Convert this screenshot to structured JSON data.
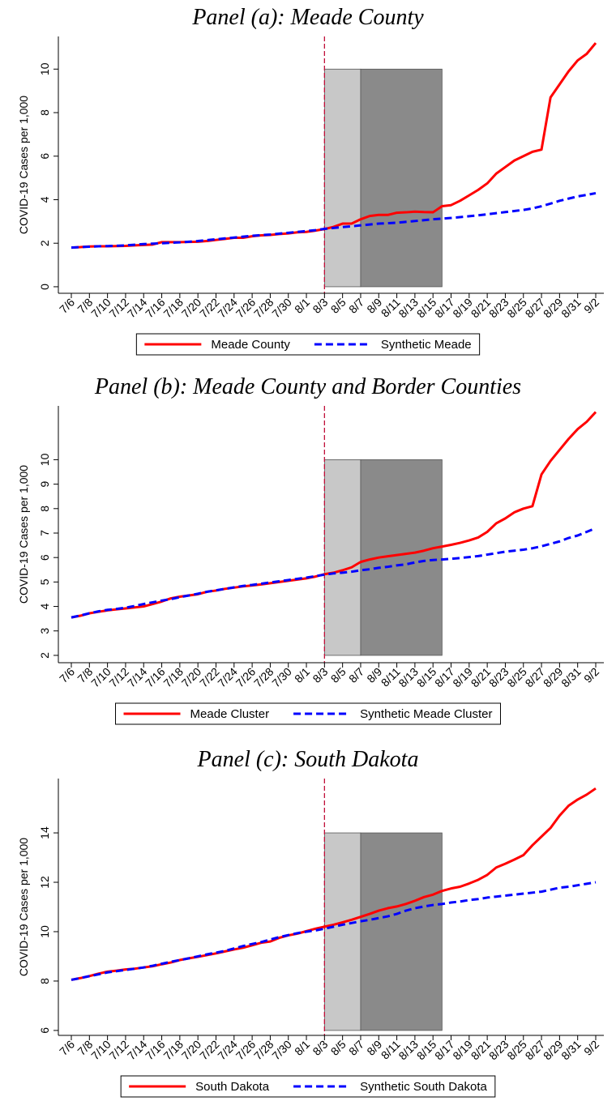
{
  "chart_data": [
    {
      "type": "line",
      "title": "Panel (a): Meade County",
      "y_label": "COVID-19 Cases per 1,000",
      "categories": [
        "7/6",
        null,
        "7/8",
        null,
        "7/10",
        null,
        "7/12",
        null,
        "7/14",
        null,
        "7/16",
        null,
        "7/18",
        null,
        "7/20",
        null,
        "7/22",
        null,
        "7/24",
        null,
        "7/26",
        null,
        "7/28",
        null,
        "7/30",
        null,
        "8/1",
        null,
        "8/3",
        null,
        "8/5",
        null,
        "8/7",
        null,
        "8/9",
        null,
        "8/11",
        null,
        "8/13",
        null,
        "8/15",
        null,
        "8/17",
        null,
        "8/19",
        null,
        "8/21",
        null,
        "8/23",
        null,
        "8/25",
        null,
        "8/27",
        null,
        "8/29",
        null,
        "8/31",
        null,
        "9/2"
      ],
      "series": [
        {
          "name": "Meade County",
          "color": "#ff0000",
          "line_style": "solid",
          "values": [
            1.8,
            1.82,
            1.85,
            1.86,
            1.86,
            1.87,
            1.88,
            1.9,
            1.92,
            1.94,
            2.05,
            2.05,
            2.05,
            2.06,
            2.07,
            2.1,
            2.15,
            2.2,
            2.25,
            2.25,
            2.32,
            2.36,
            2.38,
            2.42,
            2.45,
            2.5,
            2.52,
            2.58,
            2.65,
            2.75,
            2.9,
            2.9,
            3.1,
            3.25,
            3.3,
            3.3,
            3.4,
            3.42,
            3.45,
            3.43,
            3.42,
            3.7,
            3.75,
            3.95,
            4.2,
            4.45,
            4.75,
            5.2,
            5.5,
            5.8,
            6.0,
            6.2,
            6.3,
            8.7,
            9.3,
            9.9,
            10.4,
            10.7,
            11.2
          ]
        },
        {
          "name": "Synthetic Meade",
          "color": "#0000ff",
          "line_style": "dashed",
          "values": [
            1.8,
            1.82,
            1.84,
            1.86,
            1.87,
            1.88,
            1.9,
            1.93,
            1.96,
            1.98,
            2.0,
            2.02,
            2.04,
            2.07,
            2.1,
            2.14,
            2.18,
            2.22,
            2.26,
            2.3,
            2.34,
            2.37,
            2.4,
            2.44,
            2.48,
            2.52,
            2.56,
            2.6,
            2.66,
            2.7,
            2.74,
            2.78,
            2.82,
            2.86,
            2.9,
            2.92,
            2.94,
            2.98,
            3.02,
            3.06,
            3.1,
            3.13,
            3.16,
            3.2,
            3.24,
            3.28,
            3.33,
            3.38,
            3.43,
            3.48,
            3.53,
            3.6,
            3.7,
            3.82,
            3.95,
            4.05,
            4.15,
            4.22,
            4.3
          ]
        }
      ],
      "ylim": [
        -0.3,
        11.5
      ],
      "yticks": [
        0,
        2,
        4,
        6,
        8,
        10
      ],
      "event_index": 28,
      "event_color": "#c0103a",
      "shaded_regions": [
        {
          "from": 28,
          "to": 32,
          "bottom": 0,
          "top": 10,
          "color": "#c8c8c8"
        },
        {
          "from": 32,
          "to": 41,
          "bottom": 0,
          "top": 10,
          "color": "#8a8a8a"
        }
      ]
    },
    {
      "type": "line",
      "title": "Panel (b): Meade County and Border Counties",
      "y_label": "COVID-19 Cases per 1,000",
      "categories": [
        "7/6",
        null,
        "7/8",
        null,
        "7/10",
        null,
        "7/12",
        null,
        "7/14",
        null,
        "7/16",
        null,
        "7/18",
        null,
        "7/20",
        null,
        "7/22",
        null,
        "7/24",
        null,
        "7/26",
        null,
        "7/28",
        null,
        "7/30",
        null,
        "8/1",
        null,
        "8/3",
        null,
        "8/5",
        null,
        "8/7",
        null,
        "8/9",
        null,
        "8/11",
        null,
        "8/13",
        null,
        "8/15",
        null,
        "8/17",
        null,
        "8/19",
        null,
        "8/21",
        null,
        "8/23",
        null,
        "8/25",
        null,
        "8/27",
        null,
        "8/29",
        null,
        "8/31",
        null,
        "9/2"
      ],
      "series": [
        {
          "name": "Meade Cluster",
          "color": "#ff0000",
          "line_style": "solid",
          "values": [
            3.55,
            3.62,
            3.72,
            3.78,
            3.84,
            3.88,
            3.92,
            3.96,
            4.0,
            4.1,
            4.2,
            4.33,
            4.4,
            4.45,
            4.5,
            4.6,
            4.65,
            4.72,
            4.77,
            4.82,
            4.86,
            4.9,
            4.95,
            5.0,
            5.05,
            5.1,
            5.15,
            5.22,
            5.32,
            5.38,
            5.48,
            5.6,
            5.82,
            5.92,
            6.0,
            6.05,
            6.1,
            6.15,
            6.2,
            6.28,
            6.38,
            6.45,
            6.52,
            6.6,
            6.7,
            6.82,
            7.05,
            7.4,
            7.6,
            7.85,
            8.0,
            8.1,
            9.4,
            9.95,
            10.4,
            10.85,
            11.25,
            11.55,
            11.95
          ]
        },
        {
          "name": "Synthetic Meade Cluster",
          "color": "#0000ff",
          "line_style": "dashed",
          "values": [
            3.55,
            3.63,
            3.72,
            3.8,
            3.86,
            3.9,
            3.95,
            4.02,
            4.1,
            4.17,
            4.24,
            4.3,
            4.38,
            4.45,
            4.52,
            4.6,
            4.66,
            4.72,
            4.78,
            4.84,
            4.88,
            4.93,
            4.98,
            5.03,
            5.08,
            5.13,
            5.18,
            5.24,
            5.3,
            5.35,
            5.38,
            5.42,
            5.48,
            5.52,
            5.58,
            5.62,
            5.68,
            5.72,
            5.8,
            5.86,
            5.9,
            5.92,
            5.95,
            5.98,
            6.02,
            6.06,
            6.12,
            6.18,
            6.24,
            6.28,
            6.32,
            6.38,
            6.46,
            6.56,
            6.66,
            6.8,
            6.9,
            7.05,
            7.2
          ]
        }
      ],
      "ylim": [
        1.7,
        12.2
      ],
      "yticks": [
        2,
        3,
        4,
        5,
        6,
        7,
        8,
        9,
        10
      ],
      "event_index": 28,
      "event_color": "#c0103a",
      "shaded_regions": [
        {
          "from": 28,
          "to": 32,
          "bottom": 2,
          "top": 10,
          "color": "#c8c8c8"
        },
        {
          "from": 32,
          "to": 41,
          "bottom": 2,
          "top": 10,
          "color": "#8a8a8a"
        }
      ]
    },
    {
      "type": "line",
      "title": "Panel (c): South Dakota",
      "y_label": "COVID-19 Cases per 1,000",
      "categories": [
        "7/6",
        null,
        "7/8",
        null,
        "7/10",
        null,
        "7/12",
        null,
        "7/14",
        null,
        "7/16",
        null,
        "7/18",
        null,
        "7/20",
        null,
        "7/22",
        null,
        "7/24",
        null,
        "7/26",
        null,
        "7/28",
        null,
        "7/30",
        null,
        "8/1",
        null,
        "8/3",
        null,
        "8/5",
        null,
        "8/7",
        null,
        "8/9",
        null,
        "8/11",
        null,
        "8/13",
        null,
        "8/15",
        null,
        "8/17",
        null,
        "8/19",
        null,
        "8/21",
        null,
        "8/23",
        null,
        "8/25",
        null,
        "8/27",
        null,
        "8/29",
        null,
        "8/31",
        null,
        "9/2"
      ],
      "series": [
        {
          "name": "South Dakota",
          "color": "#ff0000",
          "line_style": "solid",
          "values": [
            8.05,
            8.12,
            8.2,
            8.3,
            8.38,
            8.42,
            8.47,
            8.5,
            8.55,
            8.6,
            8.68,
            8.75,
            8.85,
            8.92,
            8.98,
            9.05,
            9.12,
            9.2,
            9.28,
            9.35,
            9.45,
            9.55,
            9.6,
            9.75,
            9.85,
            9.92,
            10.02,
            10.12,
            10.2,
            10.28,
            10.38,
            10.48,
            10.6,
            10.72,
            10.85,
            10.95,
            11.02,
            11.12,
            11.25,
            11.4,
            11.5,
            11.65,
            11.75,
            11.82,
            11.95,
            12.1,
            12.3,
            12.6,
            12.75,
            12.92,
            13.1,
            13.5,
            13.85,
            14.2,
            14.7,
            15.1,
            15.35,
            15.55,
            15.8
          ]
        },
        {
          "name": "Synthetic South Dakota",
          "color": "#0000ff",
          "line_style": "dashed",
          "values": [
            8.05,
            8.12,
            8.2,
            8.27,
            8.35,
            8.4,
            8.45,
            8.5,
            8.55,
            8.62,
            8.7,
            8.78,
            8.85,
            8.92,
            9.0,
            9.08,
            9.15,
            9.22,
            9.32,
            9.42,
            9.5,
            9.58,
            9.68,
            9.78,
            9.86,
            9.94,
            10.0,
            10.05,
            10.12,
            10.2,
            10.28,
            10.35,
            10.42,
            10.48,
            10.55,
            10.62,
            10.72,
            10.85,
            10.95,
            11.02,
            11.08,
            11.12,
            11.18,
            11.22,
            11.28,
            11.32,
            11.38,
            11.42,
            11.46,
            11.5,
            11.54,
            11.58,
            11.62,
            11.7,
            11.78,
            11.82,
            11.88,
            11.94,
            12.0
          ]
        }
      ],
      "ylim": [
        5.8,
        16.2
      ],
      "yticks": [
        6,
        8,
        10,
        12,
        14
      ],
      "event_index": 28,
      "event_color": "#c0103a",
      "shaded_regions": [
        {
          "from": 28,
          "to": 32,
          "bottom": 6,
          "top": 14,
          "color": "#c8c8c8"
        },
        {
          "from": 32,
          "to": 41,
          "bottom": 6,
          "top": 14,
          "color": "#8a8a8a"
        }
      ]
    }
  ]
}
